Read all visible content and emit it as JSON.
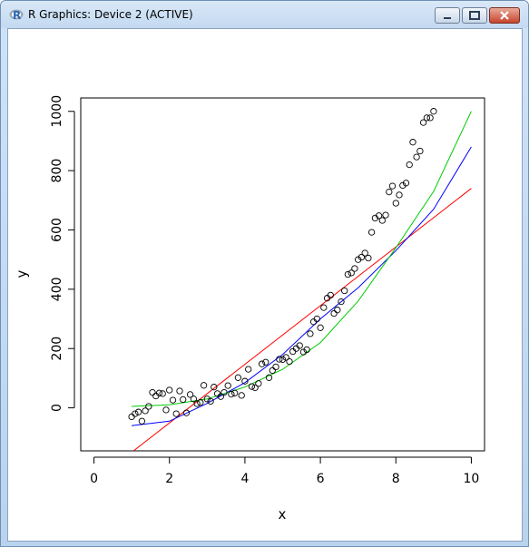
{
  "window": {
    "title": "R Graphics: Device 2 (ACTIVE)",
    "icons": [
      "r-logo-icon",
      "minimize-icon",
      "maximize-icon",
      "close-icon"
    ]
  },
  "chart_data": {
    "type": "scatter",
    "xlabel": "x",
    "ylabel": "y",
    "xlim": [
      -0.35,
      10.35
    ],
    "ylim": [
      -145,
      1045
    ],
    "xticks": [
      "0",
      "2",
      "4",
      "6",
      "8",
      "10"
    ],
    "yticks": [
      "0",
      "200",
      "400",
      "600",
      "800",
      "1000"
    ],
    "grid": false,
    "points": [
      [
        1.0,
        -30
      ],
      [
        1.09,
        -20
      ],
      [
        1.18,
        -14
      ],
      [
        1.27,
        -45
      ],
      [
        1.36,
        -10
      ],
      [
        1.45,
        5
      ],
      [
        1.55,
        52
      ],
      [
        1.64,
        40
      ],
      [
        1.73,
        50
      ],
      [
        1.82,
        48
      ],
      [
        1.91,
        -7
      ],
      [
        2.0,
        60
      ],
      [
        2.09,
        26
      ],
      [
        2.18,
        -20
      ],
      [
        2.27,
        57
      ],
      [
        2.36,
        28
      ],
      [
        2.45,
        -17
      ],
      [
        2.55,
        45
      ],
      [
        2.64,
        30
      ],
      [
        2.73,
        14
      ],
      [
        2.82,
        18
      ],
      [
        2.91,
        76
      ],
      [
        3.0,
        30
      ],
      [
        3.09,
        22
      ],
      [
        3.18,
        70
      ],
      [
        3.27,
        48
      ],
      [
        3.36,
        38
      ],
      [
        3.45,
        52
      ],
      [
        3.55,
        75
      ],
      [
        3.64,
        46
      ],
      [
        3.73,
        50
      ],
      [
        3.82,
        102
      ],
      [
        3.91,
        42
      ],
      [
        4.0,
        90
      ],
      [
        4.09,
        130
      ],
      [
        4.18,
        72
      ],
      [
        4.27,
        68
      ],
      [
        4.36,
        82
      ],
      [
        4.45,
        148
      ],
      [
        4.55,
        154
      ],
      [
        4.64,
        102
      ],
      [
        4.73,
        126
      ],
      [
        4.82,
        138
      ],
      [
        4.91,
        164
      ],
      [
        5.0,
        163
      ],
      [
        5.09,
        170
      ],
      [
        5.18,
        156
      ],
      [
        5.27,
        190
      ],
      [
        5.36,
        200
      ],
      [
        5.45,
        210
      ],
      [
        5.55,
        188
      ],
      [
        5.64,
        196
      ],
      [
        5.73,
        250
      ],
      [
        5.82,
        290
      ],
      [
        5.91,
        300
      ],
      [
        6.0,
        270
      ],
      [
        6.09,
        338
      ],
      [
        6.18,
        370
      ],
      [
        6.27,
        380
      ],
      [
        6.36,
        318
      ],
      [
        6.45,
        330
      ],
      [
        6.55,
        358
      ],
      [
        6.64,
        395
      ],
      [
        6.73,
        450
      ],
      [
        6.82,
        455
      ],
      [
        6.91,
        470
      ],
      [
        7.0,
        500
      ],
      [
        7.09,
        508
      ],
      [
        7.18,
        522
      ],
      [
        7.27,
        505
      ],
      [
        7.36,
        592
      ],
      [
        7.45,
        640
      ],
      [
        7.55,
        648
      ],
      [
        7.64,
        632
      ],
      [
        7.73,
        650
      ],
      [
        7.82,
        728
      ],
      [
        7.91,
        748
      ],
      [
        8.0,
        690
      ],
      [
        8.09,
        718
      ],
      [
        8.18,
        750
      ],
      [
        8.27,
        758
      ],
      [
        8.36,
        820
      ],
      [
        8.45,
        896
      ],
      [
        8.55,
        846
      ],
      [
        8.64,
        866
      ],
      [
        8.73,
        962
      ],
      [
        8.82,
        978
      ],
      [
        8.91,
        978
      ],
      [
        9.0,
        1000
      ]
    ],
    "fits": [
      {
        "color": "#ff0000",
        "x": [
          1,
          10
        ],
        "y": [
          -150,
          740
        ]
      },
      {
        "color": "#0000ff",
        "x": [
          1,
          2,
          3,
          4,
          5,
          6,
          7,
          8,
          9,
          10
        ],
        "y": [
          -60,
          -45,
          15,
          85,
          180,
          300,
          405,
          530,
          670,
          880
        ]
      },
      {
        "color": "#00cc00",
        "x": [
          1,
          2,
          3,
          4,
          5,
          6,
          7,
          8,
          9,
          10
        ],
        "y": [
          5,
          10,
          30,
          70,
          130,
          220,
          360,
          540,
          730,
          1000
        ]
      }
    ]
  }
}
